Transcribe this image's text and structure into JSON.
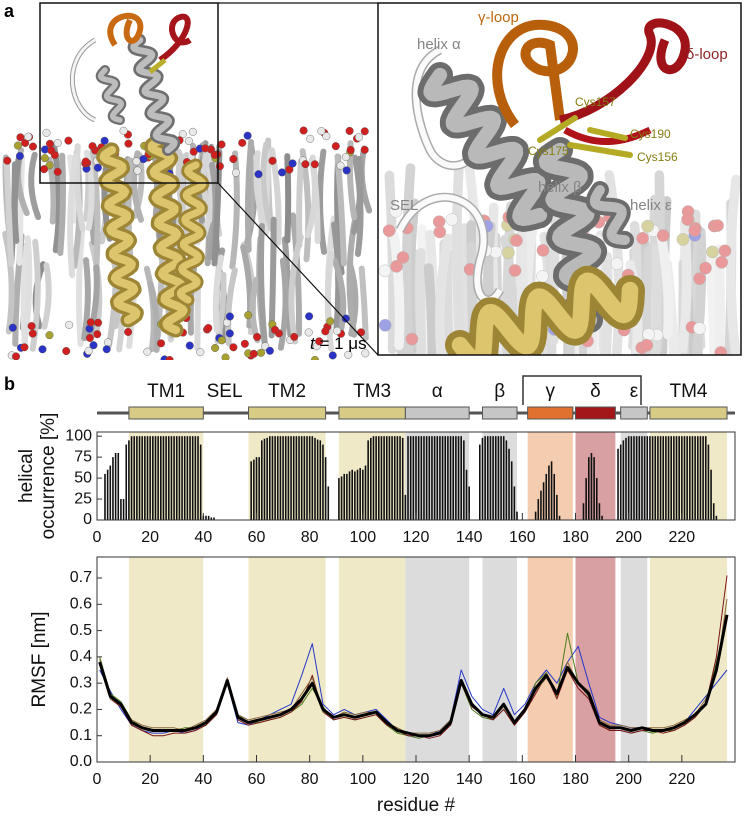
{
  "panel_a": {
    "label": "a",
    "inset_labels": {
      "gamma_loop": "γ-loop",
      "delta_loop": "δ-loop",
      "helix_alpha": "helix α",
      "cys157": "Cys157",
      "cys190": "Cys190",
      "cys175": "Cys175",
      "cys156": "Cys156",
      "sel": "SEL",
      "helix_beta": "helix β",
      "helix_epsilon": "helix ε"
    },
    "time": {
      "symbol": "t",
      "text": " = 1 μs"
    }
  },
  "panel_b": {
    "label": "b",
    "domains": [
      {
        "name": "TM1",
        "start": 12,
        "end": 40,
        "color": "#d8cb86",
        "shade": "#efe9c8",
        "box": true
      },
      {
        "name": "SEL",
        "start": 40,
        "end": 56,
        "color": "#ffffff",
        "shade": "#ffffff",
        "box": false
      },
      {
        "name": "TM2",
        "start": 57,
        "end": 86,
        "color": "#d8cb86",
        "shade": "#efe9c8",
        "box": true
      },
      {
        "name": "TM3",
        "start": 91,
        "end": 116,
        "color": "#d8cb86",
        "shade": "#efe9c8",
        "box": true
      },
      {
        "name": "α",
        "start": 116,
        "end": 140,
        "color": "#c6c6c6",
        "shade": "#dcdcdc",
        "box": true
      },
      {
        "name": "β",
        "start": 145,
        "end": 158,
        "color": "#c6c6c6",
        "shade": "#dcdcdc",
        "box": true
      },
      {
        "name": "γ",
        "start": 162,
        "end": 179,
        "color": "#e0712e",
        "shade": "#f4cdb0",
        "box": true
      },
      {
        "name": "δ",
        "start": 180,
        "end": 195,
        "color": "#a3171b",
        "shade": "#d9a0a3",
        "box": true
      },
      {
        "name": "ε",
        "start": 197,
        "end": 207,
        "color": "#c6c6c6",
        "shade": "#dcdcdc",
        "box": true
      },
      {
        "name": "TM4",
        "start": 208,
        "end": 237,
        "color": "#d8cb86",
        "shade": "#efe9c8",
        "box": true
      }
    ]
  },
  "chart_data": [
    {
      "type": "bar",
      "ylabel": [
        "helical",
        "occurrence [%]"
      ],
      "color": "#111111",
      "x": [
        1,
        2,
        3,
        4,
        5,
        6,
        7,
        8,
        9,
        10,
        11,
        12,
        13,
        14,
        15,
        16,
        17,
        18,
        19,
        20,
        21,
        22,
        23,
        24,
        25,
        26,
        27,
        28,
        29,
        30,
        31,
        32,
        33,
        34,
        35,
        36,
        37,
        38,
        39,
        40,
        41,
        42,
        43,
        44,
        45,
        46,
        47,
        48,
        49,
        50,
        51,
        52,
        53,
        54,
        55,
        56,
        57,
        58,
        59,
        60,
        61,
        62,
        63,
        64,
        65,
        66,
        67,
        68,
        69,
        70,
        71,
        72,
        73,
        74,
        75,
        76,
        77,
        78,
        79,
        80,
        81,
        82,
        83,
        84,
        85,
        86,
        87,
        88,
        89,
        90,
        91,
        92,
        93,
        94,
        95,
        96,
        97,
        98,
        99,
        100,
        101,
        102,
        103,
        104,
        105,
        106,
        107,
        108,
        109,
        110,
        111,
        112,
        113,
        114,
        115,
        116,
        117,
        118,
        119,
        120,
        121,
        122,
        123,
        124,
        125,
        126,
        127,
        128,
        129,
        130,
        131,
        132,
        133,
        134,
        135,
        136,
        137,
        138,
        139,
        140,
        141,
        142,
        143,
        144,
        145,
        146,
        147,
        148,
        149,
        150,
        151,
        152,
        153,
        154,
        155,
        156,
        157,
        158,
        159,
        160,
        161,
        162,
        163,
        164,
        165,
        166,
        167,
        168,
        169,
        170,
        171,
        172,
        173,
        174,
        175,
        176,
        177,
        178,
        179,
        180,
        181,
        182,
        183,
        184,
        185,
        186,
        187,
        188,
        189,
        190,
        191,
        192,
        193,
        194,
        195,
        196,
        197,
        198,
        199,
        200,
        201,
        202,
        203,
        204,
        205,
        206,
        207,
        208,
        209,
        210,
        211,
        212,
        213,
        214,
        215,
        216,
        217,
        218,
        219,
        220,
        221,
        222,
        223,
        224,
        225,
        226,
        227,
        228,
        229,
        230,
        231,
        232,
        233,
        234,
        235,
        236,
        237
      ],
      "values": [
        0,
        0,
        55,
        60,
        65,
        75,
        80,
        80,
        25,
        25,
        90,
        95,
        100,
        100,
        100,
        100,
        100,
        100,
        100,
        100,
        100,
        100,
        100,
        100,
        100,
        100,
        100,
        100,
        100,
        100,
        100,
        100,
        100,
        100,
        100,
        100,
        100,
        100,
        90,
        5,
        5,
        5,
        3,
        3,
        0,
        0,
        0,
        0,
        0,
        0,
        0,
        0,
        0,
        0,
        0,
        0,
        0,
        70,
        72,
        75,
        75,
        95,
        97,
        98,
        100,
        100,
        100,
        100,
        100,
        100,
        100,
        100,
        100,
        100,
        100,
        100,
        100,
        100,
        100,
        100,
        100,
        98,
        96,
        95,
        90,
        75,
        40,
        0,
        0,
        0,
        50,
        52,
        55,
        55,
        58,
        60,
        58,
        60,
        62,
        60,
        65,
        95,
        98,
        100,
        100,
        100,
        100,
        100,
        100,
        100,
        100,
        100,
        100,
        100,
        98,
        30,
        100,
        100,
        100,
        100,
        100,
        100,
        100,
        100,
        100,
        100,
        100,
        100,
        100,
        100,
        100,
        100,
        100,
        100,
        100,
        100,
        100,
        95,
        60,
        40,
        0,
        0,
        0,
        90,
        98,
        100,
        100,
        100,
        100,
        100,
        100,
        100,
        100,
        95,
        85,
        70,
        40,
        10,
        0,
        0,
        0,
        0,
        0,
        0,
        10,
        25,
        35,
        45,
        55,
        65,
        70,
        55,
        30,
        5,
        0,
        0,
        0,
        0,
        0,
        0,
        0,
        0,
        20,
        50,
        75,
        80,
        75,
        50,
        20,
        5,
        0,
        0,
        0,
        0,
        0,
        85,
        90,
        95,
        98,
        100,
        100,
        100,
        100,
        100,
        100,
        100,
        100,
        100,
        100,
        100,
        100,
        100,
        100,
        100,
        100,
        100,
        100,
        100,
        100,
        100,
        100,
        100,
        100,
        100,
        100,
        100,
        100,
        100,
        100,
        90,
        60,
        20,
        5,
        0,
        0,
        0,
        0
      ],
      "xlim": [
        0,
        240
      ],
      "ylim": [
        0,
        105
      ],
      "xticks": [
        0,
        20,
        40,
        60,
        80,
        100,
        120,
        140,
        160,
        180,
        200,
        220
      ],
      "yticks": [
        0,
        25,
        50,
        75,
        100
      ]
    },
    {
      "type": "line",
      "xlabel": "residue #",
      "ylabel": "RMSF [nm]",
      "x": [
        1,
        5,
        9,
        13,
        17,
        21,
        25,
        29,
        33,
        37,
        41,
        45,
        49,
        53,
        57,
        61,
        65,
        69,
        73,
        77,
        81,
        85,
        89,
        93,
        97,
        101,
        105,
        109,
        113,
        117,
        121,
        125,
        129,
        133,
        137,
        141,
        145,
        149,
        153,
        157,
        161,
        165,
        169,
        173,
        177,
        181,
        185,
        189,
        193,
        197,
        201,
        205,
        209,
        213,
        217,
        221,
        225,
        229,
        233,
        237
      ],
      "series": [
        {
          "color": "#2438c8",
          "linewidth": 1,
          "values": [
            0.35,
            0.27,
            0.2,
            0.14,
            0.12,
            0.11,
            0.11,
            0.12,
            0.11,
            0.12,
            0.15,
            0.2,
            0.3,
            0.15,
            0.14,
            0.16,
            0.18,
            0.2,
            0.22,
            0.33,
            0.45,
            0.22,
            0.18,
            0.2,
            0.18,
            0.19,
            0.2,
            0.16,
            0.12,
            0.1,
            0.1,
            0.1,
            0.12,
            0.16,
            0.35,
            0.25,
            0.2,
            0.18,
            0.28,
            0.18,
            0.22,
            0.3,
            0.35,
            0.3,
            0.38,
            0.44,
            0.3,
            0.17,
            0.15,
            0.14,
            0.13,
            0.13,
            0.12,
            0.12,
            0.13,
            0.15,
            0.2,
            0.25,
            0.3,
            0.35
          ]
        },
        {
          "color": "#4d7a1c",
          "linewidth": 1,
          "values": [
            0.4,
            0.26,
            0.23,
            0.16,
            0.13,
            0.12,
            0.12,
            0.12,
            0.13,
            0.13,
            0.14,
            0.18,
            0.3,
            0.18,
            0.15,
            0.15,
            0.16,
            0.17,
            0.19,
            0.22,
            0.28,
            0.21,
            0.16,
            0.17,
            0.16,
            0.17,
            0.18,
            0.14,
            0.11,
            0.1,
            0.09,
            0.1,
            0.11,
            0.14,
            0.3,
            0.2,
            0.17,
            0.16,
            0.2,
            0.14,
            0.19,
            0.3,
            0.34,
            0.25,
            0.49,
            0.3,
            0.25,
            0.14,
            0.12,
            0.12,
            0.11,
            0.12,
            0.11,
            0.12,
            0.12,
            0.14,
            0.17,
            0.22,
            0.38,
            0.55
          ]
        },
        {
          "color": "#7a1418",
          "linewidth": 1,
          "values": [
            0.37,
            0.24,
            0.21,
            0.14,
            0.12,
            0.1,
            0.1,
            0.11,
            0.11,
            0.12,
            0.14,
            0.18,
            0.32,
            0.16,
            0.14,
            0.15,
            0.16,
            0.17,
            0.19,
            0.23,
            0.33,
            0.19,
            0.16,
            0.17,
            0.16,
            0.17,
            0.18,
            0.14,
            0.12,
            0.1,
            0.1,
            0.09,
            0.1,
            0.14,
            0.3,
            0.21,
            0.18,
            0.16,
            0.2,
            0.14,
            0.19,
            0.26,
            0.33,
            0.24,
            0.35,
            0.28,
            0.24,
            0.14,
            0.12,
            0.12,
            0.11,
            0.12,
            0.12,
            0.11,
            0.12,
            0.14,
            0.17,
            0.22,
            0.4,
            0.71
          ]
        },
        {
          "color": "#8a6a3a",
          "linewidth": 1,
          "values": [
            0.39,
            0.24,
            0.22,
            0.16,
            0.14,
            0.13,
            0.13,
            0.13,
            0.12,
            0.14,
            0.16,
            0.2,
            0.32,
            0.18,
            0.16,
            0.17,
            0.18,
            0.19,
            0.2,
            0.26,
            0.32,
            0.19,
            0.17,
            0.19,
            0.18,
            0.19,
            0.19,
            0.15,
            0.13,
            0.11,
            0.11,
            0.11,
            0.12,
            0.16,
            0.3,
            0.22,
            0.18,
            0.17,
            0.21,
            0.15,
            0.2,
            0.27,
            0.32,
            0.26,
            0.38,
            0.3,
            0.27,
            0.16,
            0.14,
            0.14,
            0.13,
            0.13,
            0.13,
            0.13,
            0.14,
            0.16,
            0.18,
            0.24,
            0.34,
            0.62
          ]
        },
        {
          "color": "#000000",
          "linewidth": 3,
          "values": [
            0.38,
            0.25,
            0.22,
            0.15,
            0.13,
            0.12,
            0.12,
            0.12,
            0.12,
            0.13,
            0.15,
            0.19,
            0.31,
            0.17,
            0.15,
            0.16,
            0.17,
            0.18,
            0.2,
            0.24,
            0.3,
            0.2,
            0.17,
            0.18,
            0.17,
            0.18,
            0.19,
            0.15,
            0.12,
            0.11,
            0.1,
            0.1,
            0.11,
            0.15,
            0.31,
            0.22,
            0.18,
            0.17,
            0.22,
            0.15,
            0.2,
            0.28,
            0.33,
            0.26,
            0.36,
            0.3,
            0.26,
            0.15,
            0.13,
            0.13,
            0.12,
            0.13,
            0.12,
            0.12,
            0.13,
            0.15,
            0.18,
            0.22,
            0.35,
            0.56
          ]
        }
      ],
      "xlim": [
        0,
        240
      ],
      "ylim": [
        0,
        0.78
      ],
      "xticks": [
        0,
        20,
        40,
        60,
        80,
        100,
        120,
        140,
        160,
        180,
        200,
        220
      ],
      "yticks": [
        {
          "value": 0,
          "label": "0.0"
        },
        0.1,
        0.2,
        0.3,
        0.4,
        0.5,
        0.6,
        0.7
      ]
    }
  ]
}
